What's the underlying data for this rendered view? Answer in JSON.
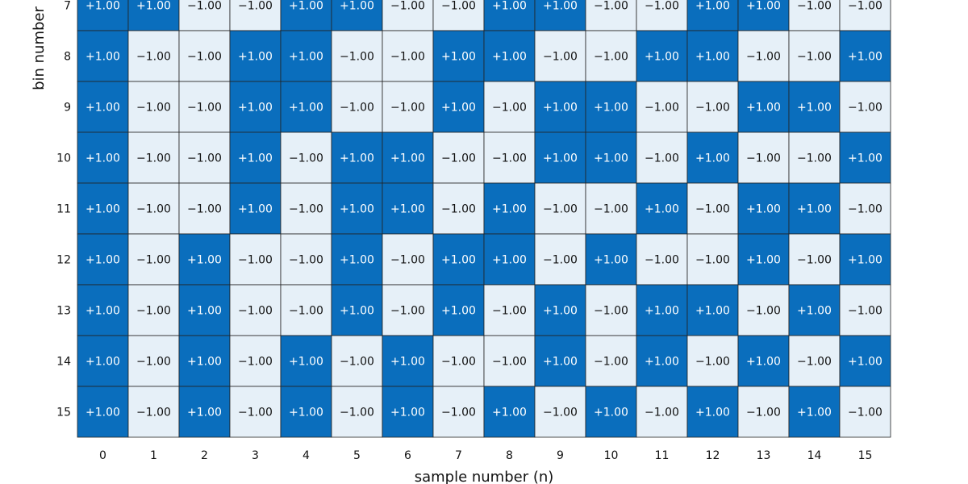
{
  "chart_data": {
    "type": "heatmap",
    "title": "",
    "xlabel": "sample number (n)",
    "ylabel": "bin number",
    "x_ticks": [
      "0",
      "1",
      "2",
      "3",
      "4",
      "5",
      "6",
      "7",
      "8",
      "9",
      "10",
      "11",
      "12",
      "13",
      "14",
      "15"
    ],
    "y_ticks": [
      "7",
      "8",
      "9",
      "10",
      "11",
      "12",
      "13",
      "14",
      "15"
    ],
    "colors": {
      "positive": "#0a6ebd",
      "negative": "#e6f0f8",
      "grid": "#222222",
      "text_on_positive": "#ffffff",
      "text_on_negative": "#111111"
    },
    "grid": true,
    "rows": [
      {
        "bin": "7",
        "values": [
          1,
          1,
          -1,
          -1,
          1,
          1,
          -1,
          -1,
          1,
          1,
          -1,
          -1,
          1,
          1,
          -1,
          -1
        ]
      },
      {
        "bin": "8",
        "values": [
          1,
          -1,
          -1,
          1,
          1,
          -1,
          -1,
          1,
          1,
          -1,
          -1,
          1,
          1,
          -1,
          -1,
          1
        ]
      },
      {
        "bin": "9",
        "values": [
          1,
          -1,
          -1,
          1,
          1,
          -1,
          -1,
          1,
          -1,
          1,
          1,
          -1,
          -1,
          1,
          1,
          -1
        ]
      },
      {
        "bin": "10",
        "values": [
          1,
          -1,
          -1,
          1,
          -1,
          1,
          1,
          -1,
          -1,
          1,
          1,
          -1,
          1,
          -1,
          -1,
          1
        ]
      },
      {
        "bin": "11",
        "values": [
          1,
          -1,
          -1,
          1,
          -1,
          1,
          1,
          -1,
          1,
          -1,
          -1,
          1,
          -1,
          1,
          1,
          -1
        ]
      },
      {
        "bin": "12",
        "values": [
          1,
          -1,
          1,
          -1,
          -1,
          1,
          -1,
          1,
          1,
          -1,
          1,
          -1,
          -1,
          1,
          -1,
          1
        ]
      },
      {
        "bin": "13",
        "values": [
          1,
          -1,
          1,
          -1,
          -1,
          1,
          -1,
          1,
          -1,
          1,
          -1,
          1,
          1,
          -1,
          1,
          -1
        ]
      },
      {
        "bin": "14",
        "values": [
          1,
          -1,
          1,
          -1,
          1,
          -1,
          1,
          -1,
          -1,
          1,
          -1,
          1,
          -1,
          1,
          -1,
          1
        ]
      },
      {
        "bin": "15",
        "values": [
          1,
          -1,
          1,
          -1,
          1,
          -1,
          1,
          -1,
          1,
          -1,
          1,
          -1,
          1,
          -1,
          1,
          -1
        ]
      }
    ]
  }
}
